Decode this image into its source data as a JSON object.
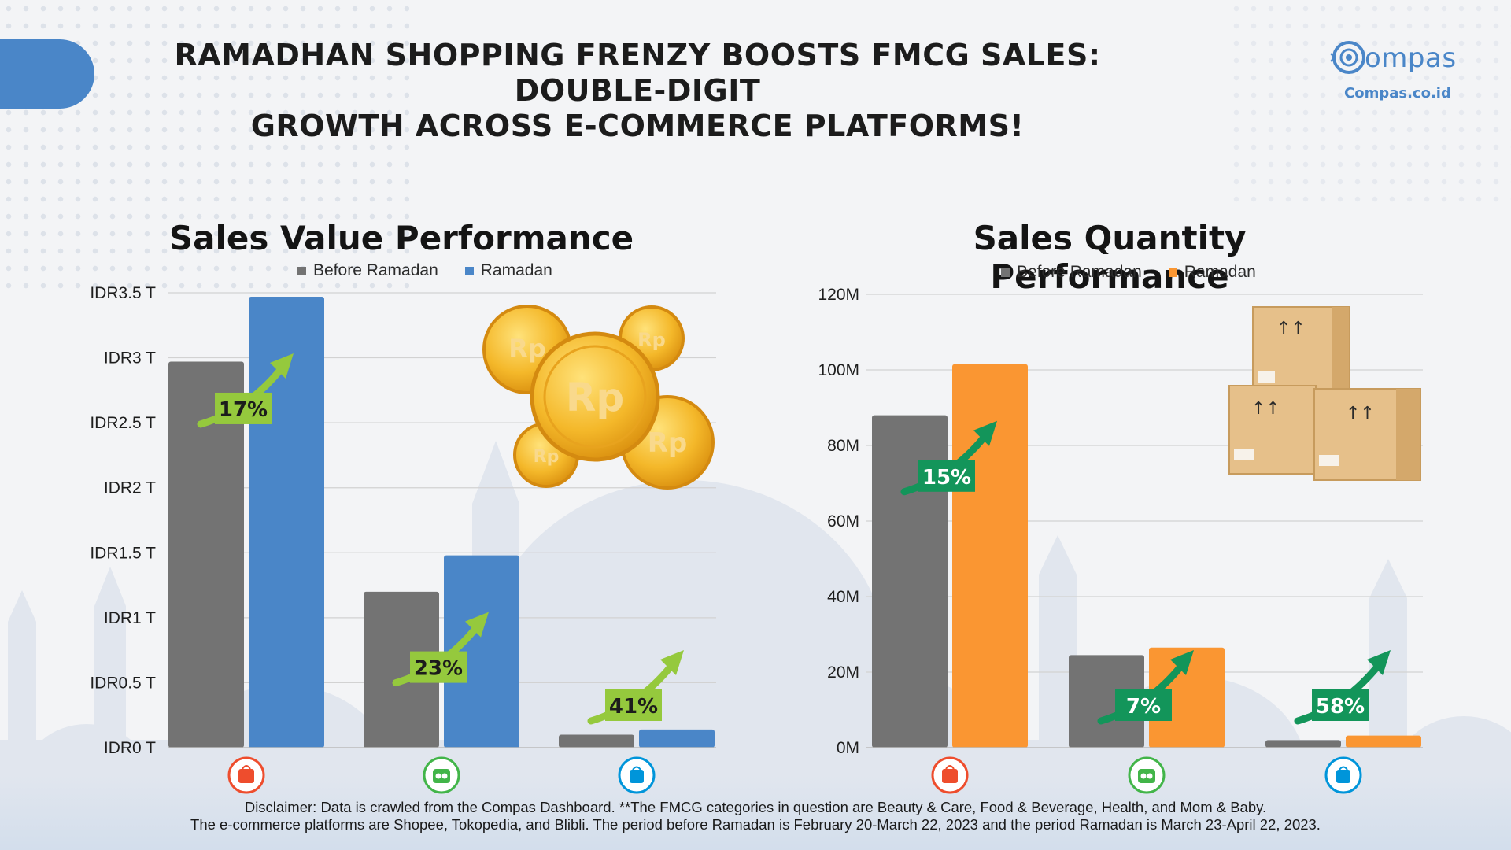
{
  "header": {
    "title_line1": "RAMADHAN SHOPPING FRENZY BOOSTS FMCG SALES: DOUBLE-DIGIT",
    "title_line2": "GROWTH ACROSS E-COMMERCE PLATFORMS!"
  },
  "logo": {
    "word": "ompas",
    "url": "Compas.co.id",
    "color": "#4a86c8"
  },
  "chart_data": [
    {
      "type": "bar",
      "title": "Sales Value Performance",
      "categories": [
        "Shopee",
        "Tokopedia",
        "Blibli"
      ],
      "series": [
        {
          "name": "Before Ramadan",
          "color": "#737373",
          "values": [
            2.97,
            1.2,
            0.1
          ]
        },
        {
          "name": "Ramadan",
          "color": "#4a86c8",
          "values": [
            3.47,
            1.48,
            0.14
          ]
        }
      ],
      "ylim": [
        0,
        3.5
      ],
      "yticks": [
        0,
        0.5,
        1,
        1.5,
        2,
        2.5,
        3,
        3.5
      ],
      "ytick_labels": [
        "IDR0 T",
        "IDR0.5 T",
        "IDR1 T",
        "IDR1.5 T",
        "IDR2 T",
        "IDR2.5 T",
        "IDR3 T",
        "IDR3.5 T"
      ],
      "growth_labels": [
        "17%",
        "23%",
        "41%"
      ],
      "growth_color": "#95c93d",
      "grid": true,
      "legend_position": "top"
    },
    {
      "type": "bar",
      "title": "Sales Quantity Performance",
      "categories": [
        "Shopee",
        "Tokopedia",
        "Blibli"
      ],
      "series": [
        {
          "name": "Before Ramadan",
          "color": "#737373",
          "values": [
            88,
            24.5,
            2
          ]
        },
        {
          "name": "Ramadan",
          "color": "#fa9632",
          "values": [
            101.5,
            26.5,
            3.2
          ]
        }
      ],
      "ylim": [
        0,
        120
      ],
      "yticks": [
        0,
        20,
        40,
        60,
        80,
        100,
        120
      ],
      "ytick_labels": [
        "0M",
        "20M",
        "40M",
        "60M",
        "80M",
        "100M",
        "120M"
      ],
      "growth_labels": [
        "15%",
        "7%",
        "58%"
      ],
      "growth_color": "#13955a",
      "grid": true,
      "legend_position": "top"
    }
  ],
  "platform_icons": [
    "shopee-icon",
    "tokopedia-icon",
    "blibli-icon"
  ],
  "platform_colors": [
    "#ee4d2d",
    "#42b549",
    "#0095da"
  ],
  "disclaimer": {
    "line1": "Disclaimer: Data is crawled from the Compas Dashboard. **The FMCG categories in question are Beauty & Care, Food & Beverage, Health, and Mom & Baby.",
    "line2": "The e-commerce platforms are Shopee, Tokopedia, and Blibli. The period before Ramadan is February 20-March 22, 2023 and the period Ramadan is March 23-April 22, 2023."
  }
}
